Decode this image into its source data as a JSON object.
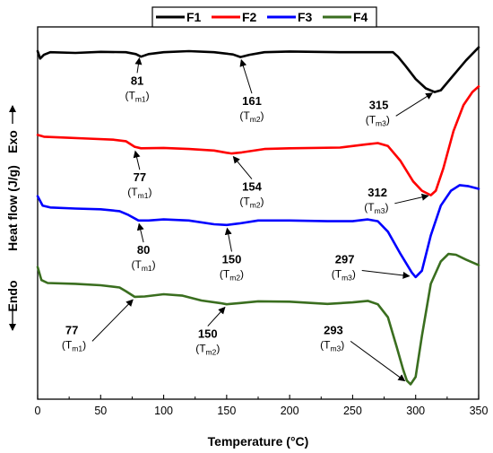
{
  "chart_data": {
    "type": "line",
    "title": "",
    "xlabel": "Temperature (°C)",
    "ylabel": "Heat flow (J/g)",
    "ylabel_exo": "Exo",
    "ylabel_endo": "Endo",
    "xlim": [
      0,
      350
    ],
    "x_ticks": [
      "0",
      "50",
      "100",
      "150",
      "200",
      "250",
      "300",
      "350"
    ],
    "legend_position": "top-center",
    "series": [
      {
        "name": "F1",
        "color": "#000000",
        "points": [
          [
            0,
            0.935
          ],
          [
            2,
            0.915
          ],
          [
            5,
            0.925
          ],
          [
            10,
            0.932
          ],
          [
            30,
            0.93
          ],
          [
            50,
            0.933
          ],
          [
            70,
            0.932
          ],
          [
            78,
            0.927
          ],
          [
            82,
            0.92
          ],
          [
            88,
            0.927
          ],
          [
            100,
            0.932
          ],
          [
            120,
            0.935
          ],
          [
            140,
            0.932
          ],
          [
            155,
            0.926
          ],
          [
            161,
            0.919
          ],
          [
            168,
            0.925
          ],
          [
            180,
            0.932
          ],
          [
            200,
            0.934
          ],
          [
            240,
            0.932
          ],
          [
            270,
            0.932
          ],
          [
            282,
            0.932
          ],
          [
            286,
            0.92
          ],
          [
            292,
            0.895
          ],
          [
            300,
            0.86
          ],
          [
            308,
            0.835
          ],
          [
            315,
            0.825
          ],
          [
            320,
            0.83
          ],
          [
            330,
            0.87
          ],
          [
            340,
            0.91
          ],
          [
            350,
            0.945
          ]
        ]
      },
      {
        "name": "F2",
        "color": "#ff0000",
        "points": [
          [
            0,
            0.71
          ],
          [
            5,
            0.705
          ],
          [
            20,
            0.703
          ],
          [
            40,
            0.7
          ],
          [
            60,
            0.697
          ],
          [
            70,
            0.693
          ],
          [
            77,
            0.678
          ],
          [
            82,
            0.674
          ],
          [
            100,
            0.675
          ],
          [
            120,
            0.672
          ],
          [
            140,
            0.668
          ],
          [
            150,
            0.662
          ],
          [
            154,
            0.66
          ],
          [
            162,
            0.663
          ],
          [
            180,
            0.672
          ],
          [
            200,
            0.674
          ],
          [
            240,
            0.676
          ],
          [
            260,
            0.684
          ],
          [
            270,
            0.688
          ],
          [
            278,
            0.68
          ],
          [
            288,
            0.64
          ],
          [
            298,
            0.585
          ],
          [
            305,
            0.56
          ],
          [
            312,
            0.548
          ],
          [
            316,
            0.56
          ],
          [
            322,
            0.62
          ],
          [
            330,
            0.72
          ],
          [
            338,
            0.79
          ],
          [
            345,
            0.825
          ],
          [
            350,
            0.84
          ]
        ]
      },
      {
        "name": "F3",
        "color": "#0000ff",
        "points": [
          [
            0,
            0.545
          ],
          [
            4,
            0.52
          ],
          [
            10,
            0.515
          ],
          [
            30,
            0.512
          ],
          [
            50,
            0.51
          ],
          [
            65,
            0.505
          ],
          [
            72,
            0.495
          ],
          [
            80,
            0.48
          ],
          [
            88,
            0.48
          ],
          [
            100,
            0.483
          ],
          [
            120,
            0.48
          ],
          [
            140,
            0.47
          ],
          [
            150,
            0.468
          ],
          [
            160,
            0.472
          ],
          [
            175,
            0.48
          ],
          [
            200,
            0.48
          ],
          [
            230,
            0.478
          ],
          [
            250,
            0.478
          ],
          [
            262,
            0.483
          ],
          [
            270,
            0.478
          ],
          [
            278,
            0.45
          ],
          [
            288,
            0.39
          ],
          [
            297,
            0.34
          ],
          [
            300,
            0.328
          ],
          [
            305,
            0.345
          ],
          [
            312,
            0.44
          ],
          [
            320,
            0.52
          ],
          [
            328,
            0.56
          ],
          [
            335,
            0.575
          ],
          [
            342,
            0.572
          ],
          [
            350,
            0.565
          ]
        ]
      },
      {
        "name": "F4",
        "color": "#3a6e1f",
        "points": [
          [
            0,
            0.355
          ],
          [
            3,
            0.32
          ],
          [
            8,
            0.312
          ],
          [
            30,
            0.31
          ],
          [
            50,
            0.306
          ],
          [
            65,
            0.3
          ],
          [
            70,
            0.29
          ],
          [
            77,
            0.275
          ],
          [
            85,
            0.276
          ],
          [
            100,
            0.282
          ],
          [
            115,
            0.278
          ],
          [
            130,
            0.265
          ],
          [
            145,
            0.258
          ],
          [
            150,
            0.255
          ],
          [
            160,
            0.258
          ],
          [
            175,
            0.263
          ],
          [
            200,
            0.262
          ],
          [
            230,
            0.256
          ],
          [
            250,
            0.26
          ],
          [
            262,
            0.264
          ],
          [
            270,
            0.255
          ],
          [
            278,
            0.22
          ],
          [
            285,
            0.14
          ],
          [
            290,
            0.08
          ],
          [
            293,
            0.05
          ],
          [
            296,
            0.04
          ],
          [
            300,
            0.06
          ],
          [
            305,
            0.17
          ],
          [
            312,
            0.31
          ],
          [
            320,
            0.37
          ],
          [
            326,
            0.39
          ],
          [
            332,
            0.388
          ],
          [
            340,
            0.375
          ],
          [
            350,
            0.36
          ]
        ]
      }
    ],
    "annotations": [
      {
        "value": "81",
        "label": "T",
        "sub": "m1",
        "tx": 81,
        "ty": 0.923,
        "lx": 79,
        "ly": 0.845,
        "anchor": "middle"
      },
      {
        "value": "161",
        "label": "T",
        "sub": "m2",
        "tx": 161,
        "ty": 0.918,
        "lx": 170,
        "ly": 0.79,
        "anchor": "middle"
      },
      {
        "value": "315",
        "label": "T",
        "sub": "m3",
        "tx": 315,
        "ty": 0.826,
        "lx": 263,
        "ly": 0.78,
        "anchor": "start"
      },
      {
        "value": "77",
        "label": "T",
        "sub": "m1",
        "tx": 77,
        "ty": 0.673,
        "lx": 81,
        "ly": 0.585,
        "anchor": "middle"
      },
      {
        "value": "154",
        "label": "T",
        "sub": "m2",
        "tx": 154,
        "ty": 0.657,
        "lx": 170,
        "ly": 0.56,
        "anchor": "middle"
      },
      {
        "value": "312",
        "label": "T",
        "sub": "m3",
        "tx": 312,
        "ty": 0.548,
        "lx": 262,
        "ly": 0.545,
        "anchor": "start"
      },
      {
        "value": "80",
        "label": "T",
        "sub": "m1",
        "tx": 80,
        "ty": 0.478,
        "lx": 84,
        "ly": 0.39,
        "anchor": "middle"
      },
      {
        "value": "150",
        "label": "T",
        "sub": "m2",
        "tx": 150,
        "ty": 0.466,
        "lx": 154,
        "ly": 0.365,
        "anchor": "middle"
      },
      {
        "value": "297",
        "label": "T",
        "sub": "m3",
        "tx": 297,
        "ty": 0.33,
        "lx": 236,
        "ly": 0.365,
        "anchor": "start"
      },
      {
        "value": "77",
        "label": "T",
        "sub": "m1",
        "tx": 77,
        "ty": 0.272,
        "lx": 22,
        "ly": 0.175,
        "anchor": "start"
      },
      {
        "value": "150",
        "label": "T",
        "sub": "m2",
        "tx": 150,
        "ty": 0.252,
        "lx": 135,
        "ly": 0.165,
        "anchor": "middle"
      },
      {
        "value": "293",
        "label": "T",
        "sub": "m3",
        "tx": 293,
        "ty": 0.045,
        "lx": 227,
        "ly": 0.175,
        "anchor": "start"
      }
    ]
  }
}
